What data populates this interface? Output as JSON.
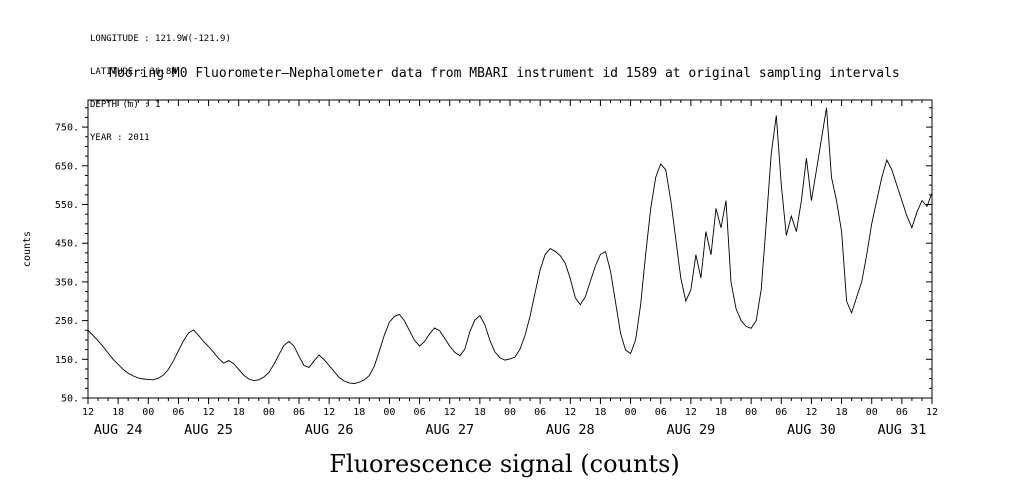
{
  "meta": {
    "lines": [
      "LONGITUDE : 121.9W(-121.9)",
      "LATITUDE : 36.8N",
      "DEPTH (m) : 1",
      "YEAR : 2011"
    ]
  },
  "title": "Mooring M0 Fluorometer—Nephalometer data from MBARI instrument id 1589 at original sampling intervals",
  "bottom_title": "Fluorescence signal (counts)",
  "colors": {
    "line": "#000000",
    "background": "#ffffff",
    "text": "#000000"
  },
  "chart_data": {
    "type": "line",
    "title": "Mooring M0 Fluorometer—Nephalometer data from MBARI instrument id 1589 at original sampling intervals",
    "xlabel": "Fluorescence signal (counts)",
    "ylabel": "counts",
    "ylim": [
      50,
      820
    ],
    "y_ticks": [
      50,
      150,
      250,
      350,
      450,
      550,
      650,
      750
    ],
    "y_tick_suffix": ".",
    "x_start_label": "AUG 24 12:00",
    "x_end_label": "AUG 31 12:00",
    "x_hours_total": 168,
    "x_values_step_hours": 1,
    "x_tick_interval_hours": 6,
    "x_tick_labels": [
      "12",
      "18",
      "00",
      "06",
      "12",
      "18",
      "00",
      "06",
      "12",
      "18",
      "00",
      "06",
      "12",
      "18",
      "00",
      "06",
      "12",
      "18",
      "00",
      "06",
      "12",
      "18",
      "00",
      "06",
      "12",
      "18",
      "00",
      "06",
      "12"
    ],
    "date_labels": [
      {
        "label": "AUG 24",
        "center_hour": 6
      },
      {
        "label": "AUG 25",
        "center_hour": 24
      },
      {
        "label": "AUG 26",
        "center_hour": 48
      },
      {
        "label": "AUG 27",
        "center_hour": 72
      },
      {
        "label": "AUG 28",
        "center_hour": 96
      },
      {
        "label": "AUG 29",
        "center_hour": 120
      },
      {
        "label": "AUG 30",
        "center_hour": 144
      },
      {
        "label": "AUG 31",
        "center_hour": 162
      }
    ],
    "series_name": "fluorescence counts",
    "values": [
      225,
      212,
      198,
      183,
      166,
      150,
      137,
      124,
      114,
      107,
      102,
      99,
      98,
      97,
      101,
      109,
      124,
      146,
      172,
      198,
      218,
      226,
      212,
      196,
      183,
      168,
      152,
      140,
      147,
      139,
      124,
      109,
      99,
      95,
      97,
      104,
      116,
      137,
      162,
      186,
      196,
      184,
      158,
      134,
      129,
      146,
      161,
      149,
      134,
      118,
      103,
      94,
      89,
      87,
      91,
      97,
      108,
      133,
      172,
      213,
      246,
      261,
      266,
      249,
      224,
      199,
      184,
      196,
      216,
      231,
      224,
      204,
      184,
      168,
      159,
      176,
      221,
      251,
      263,
      239,
      199,
      169,
      154,
      148,
      151,
      156,
      176,
      212,
      262,
      322,
      381,
      421,
      436,
      429,
      418,
      398,
      358,
      309,
      291,
      312,
      352,
      391,
      421,
      428,
      378,
      298,
      218,
      174,
      165,
      200,
      290,
      420,
      540,
      620,
      655,
      640,
      560,
      460,
      360,
      300,
      330,
      420,
      360,
      480,
      420,
      540,
      490,
      560,
      350,
      280,
      250,
      235,
      230,
      250,
      330,
      500,
      680,
      780,
      600,
      470,
      520,
      480,
      560,
      670,
      560,
      640,
      720,
      800,
      620,
      560,
      480,
      300,
      270,
      310,
      350,
      420,
      500,
      560,
      620,
      665,
      640,
      600,
      560,
      520,
      490,
      530,
      560,
      545,
      580
    ]
  }
}
